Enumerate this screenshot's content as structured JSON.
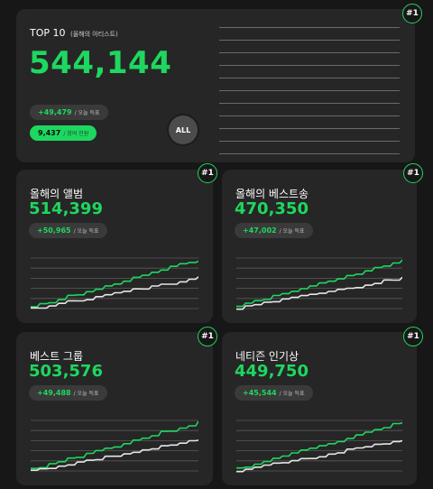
{
  "top10": {
    "title": "TOP 10",
    "subtitle": "(올해의 아티스트)",
    "value": "544,144",
    "delta": "+49,479",
    "delta_caption": "/ 오늘 득표",
    "count": "9,437",
    "count_caption": "/ 참여 인원",
    "all_label": "ALL",
    "rank": "#1"
  },
  "cards": {
    "album": {
      "title": "올해의 앨범",
      "value": "514,399",
      "delta": "+50,965",
      "delta_caption": "/ 오늘 득표",
      "rank": "#1"
    },
    "song": {
      "title": "올해의 베스트송",
      "value": "470,350",
      "delta": "+47,002",
      "delta_caption": "/ 오늘 득표",
      "rank": "#1"
    },
    "group": {
      "title": "베스트 그룹",
      "value": "503,576",
      "delta": "+49,488",
      "delta_caption": "/ 오늘 득표",
      "rank": "#1"
    },
    "netizen": {
      "title": "네티즌 인기상",
      "value": "449,750",
      "delta": "+45,544",
      "delta_caption": "/ 오늘 득표",
      "rank": "#1"
    }
  },
  "colors": {
    "background": "#171717",
    "card": "#262626",
    "accent": "#1ed760",
    "pill": "#3a3a3a",
    "secondary_line": "#e6e6e6"
  }
}
